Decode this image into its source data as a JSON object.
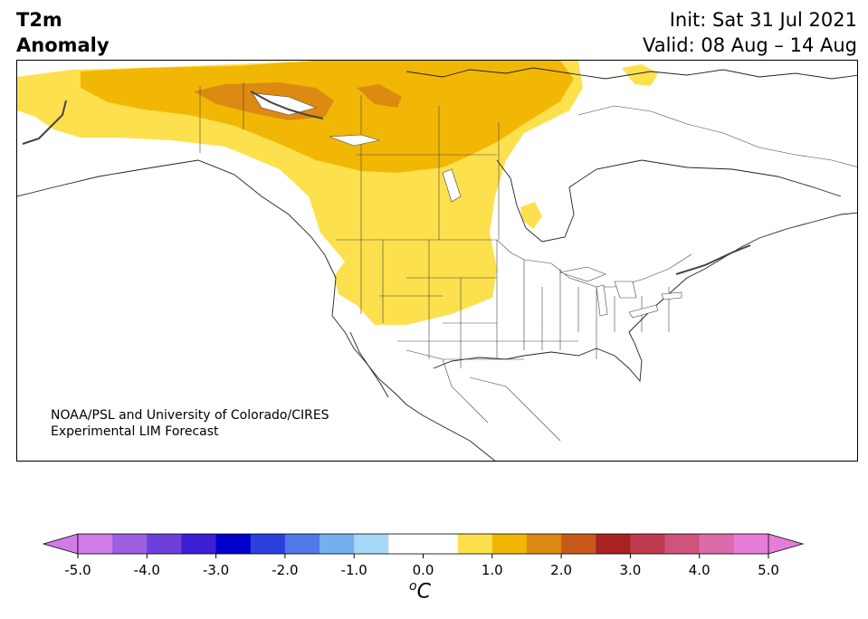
{
  "header": {
    "title_line1": "T2m",
    "title_line2": "Anomaly",
    "init": "Init: Sat 31 Jul 2021",
    "valid": "Valid: 08 Aug – 14 Aug"
  },
  "credit": {
    "line1": "NOAA/PSL and University of Colorado/CIRES",
    "line2": "Experimental LIM Forecast"
  },
  "colorbar": {
    "ticks": [
      "-5.0",
      "-4.0",
      "-3.0",
      "-2.0",
      "-1.0",
      "0.0",
      "1.0",
      "2.0",
      "3.0",
      "4.0",
      "5.0"
    ],
    "unit_sup": "o",
    "unit": "C",
    "colors": [
      "#d07be6",
      "#9c5fe0",
      "#6d3fdb",
      "#3c1fd4",
      "#0000cc",
      "#2b3fdb",
      "#4f79e6",
      "#74b0ef",
      "#a8d8f8",
      "#ffffff",
      "#ffffff",
      "#fde04e",
      "#f2b705",
      "#dc8a12",
      "#c75a1a",
      "#a82222",
      "#bf3b4e",
      "#cf537a",
      "#da6aa8",
      "#e67dd8"
    ],
    "extend_low": "#d07be6",
    "extend_high": "#e67dd8"
  }
}
